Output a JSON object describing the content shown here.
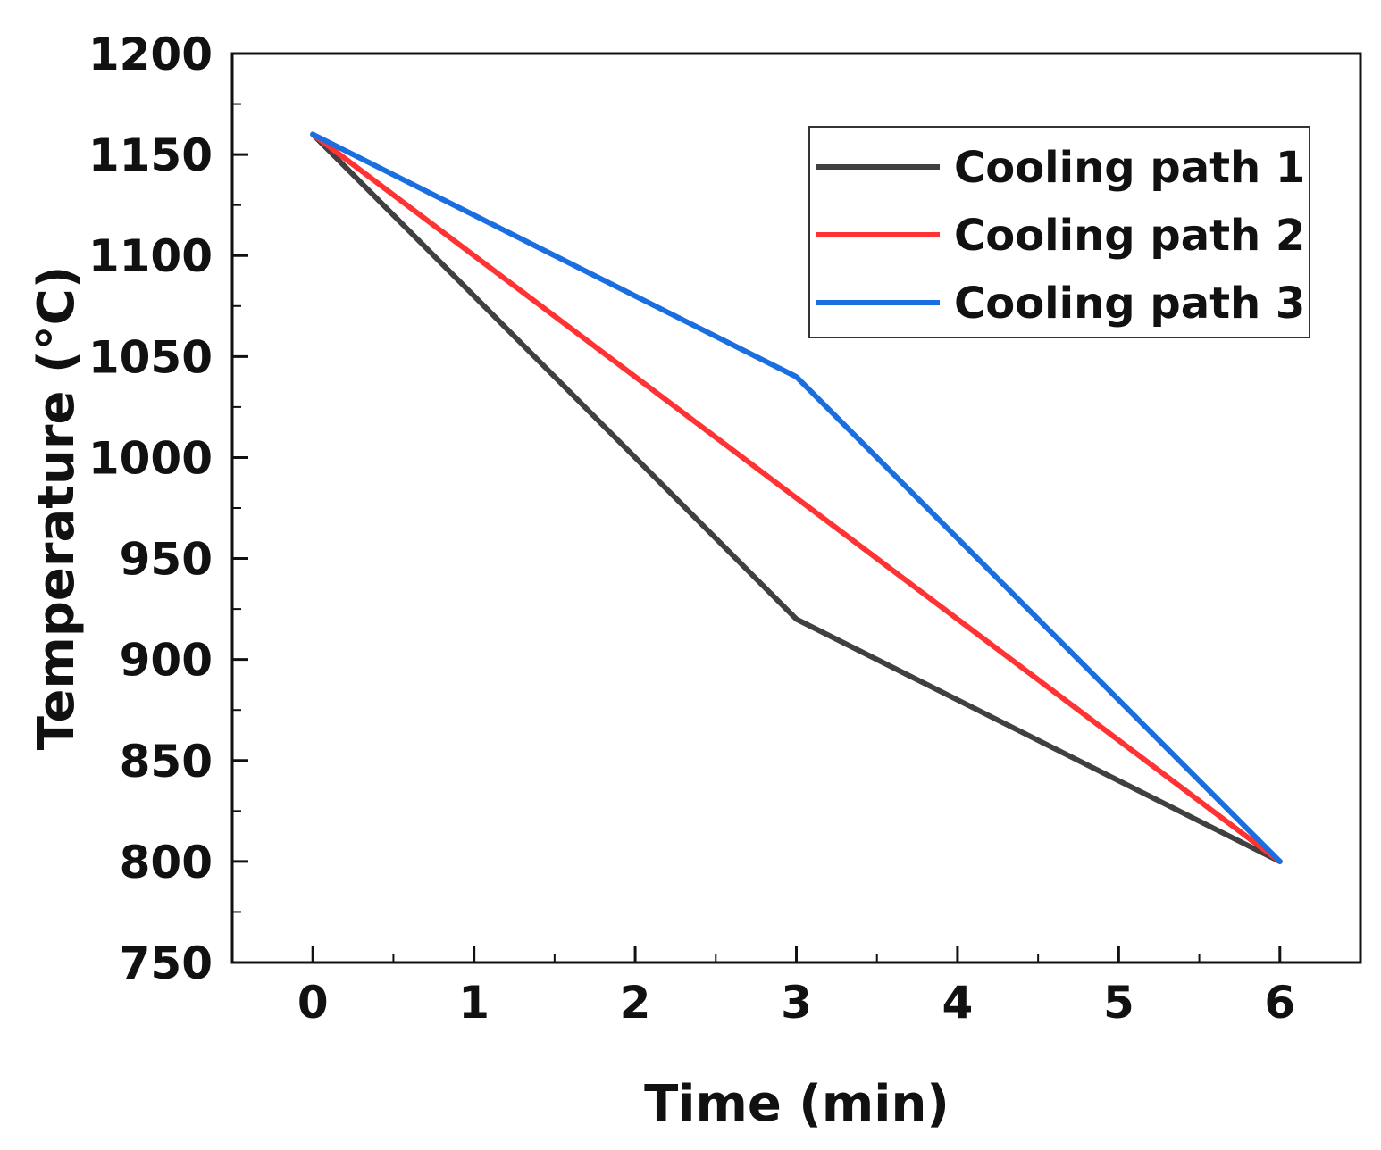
{
  "chart_data": {
    "type": "line",
    "title": "",
    "xlabel": "Time (min)",
    "ylabel": "Temperature (°C)",
    "xlim": [
      -0.5,
      6.5
    ],
    "ylim": [
      750,
      1200
    ],
    "x_ticks": [
      0,
      1,
      2,
      3,
      4,
      5,
      6
    ],
    "x_tick_labels": [
      "0",
      "1",
      "2",
      "3",
      "4",
      "5",
      "6"
    ],
    "y_ticks": [
      750,
      800,
      850,
      900,
      950,
      1000,
      1050,
      1100,
      1150,
      1200
    ],
    "y_tick_labels": [
      "750",
      "800",
      "850",
      "900",
      "950",
      "1000",
      "1050",
      "1100",
      "1150",
      "1200"
    ],
    "grid": false,
    "legend_position": "top-right",
    "series": [
      {
        "name": "Cooling path 1",
        "color": "#404040",
        "x": [
          0,
          3,
          6
        ],
        "values": [
          1160,
          920,
          800
        ]
      },
      {
        "name": "Cooling path 2",
        "color": "#ff3333",
        "x": [
          0,
          3,
          6
        ],
        "values": [
          1160,
          980,
          800
        ]
      },
      {
        "name": "Cooling path 3",
        "color": "#1a6fe0",
        "x": [
          0,
          3,
          6
        ],
        "values": [
          1160,
          1040,
          800
        ]
      }
    ]
  }
}
